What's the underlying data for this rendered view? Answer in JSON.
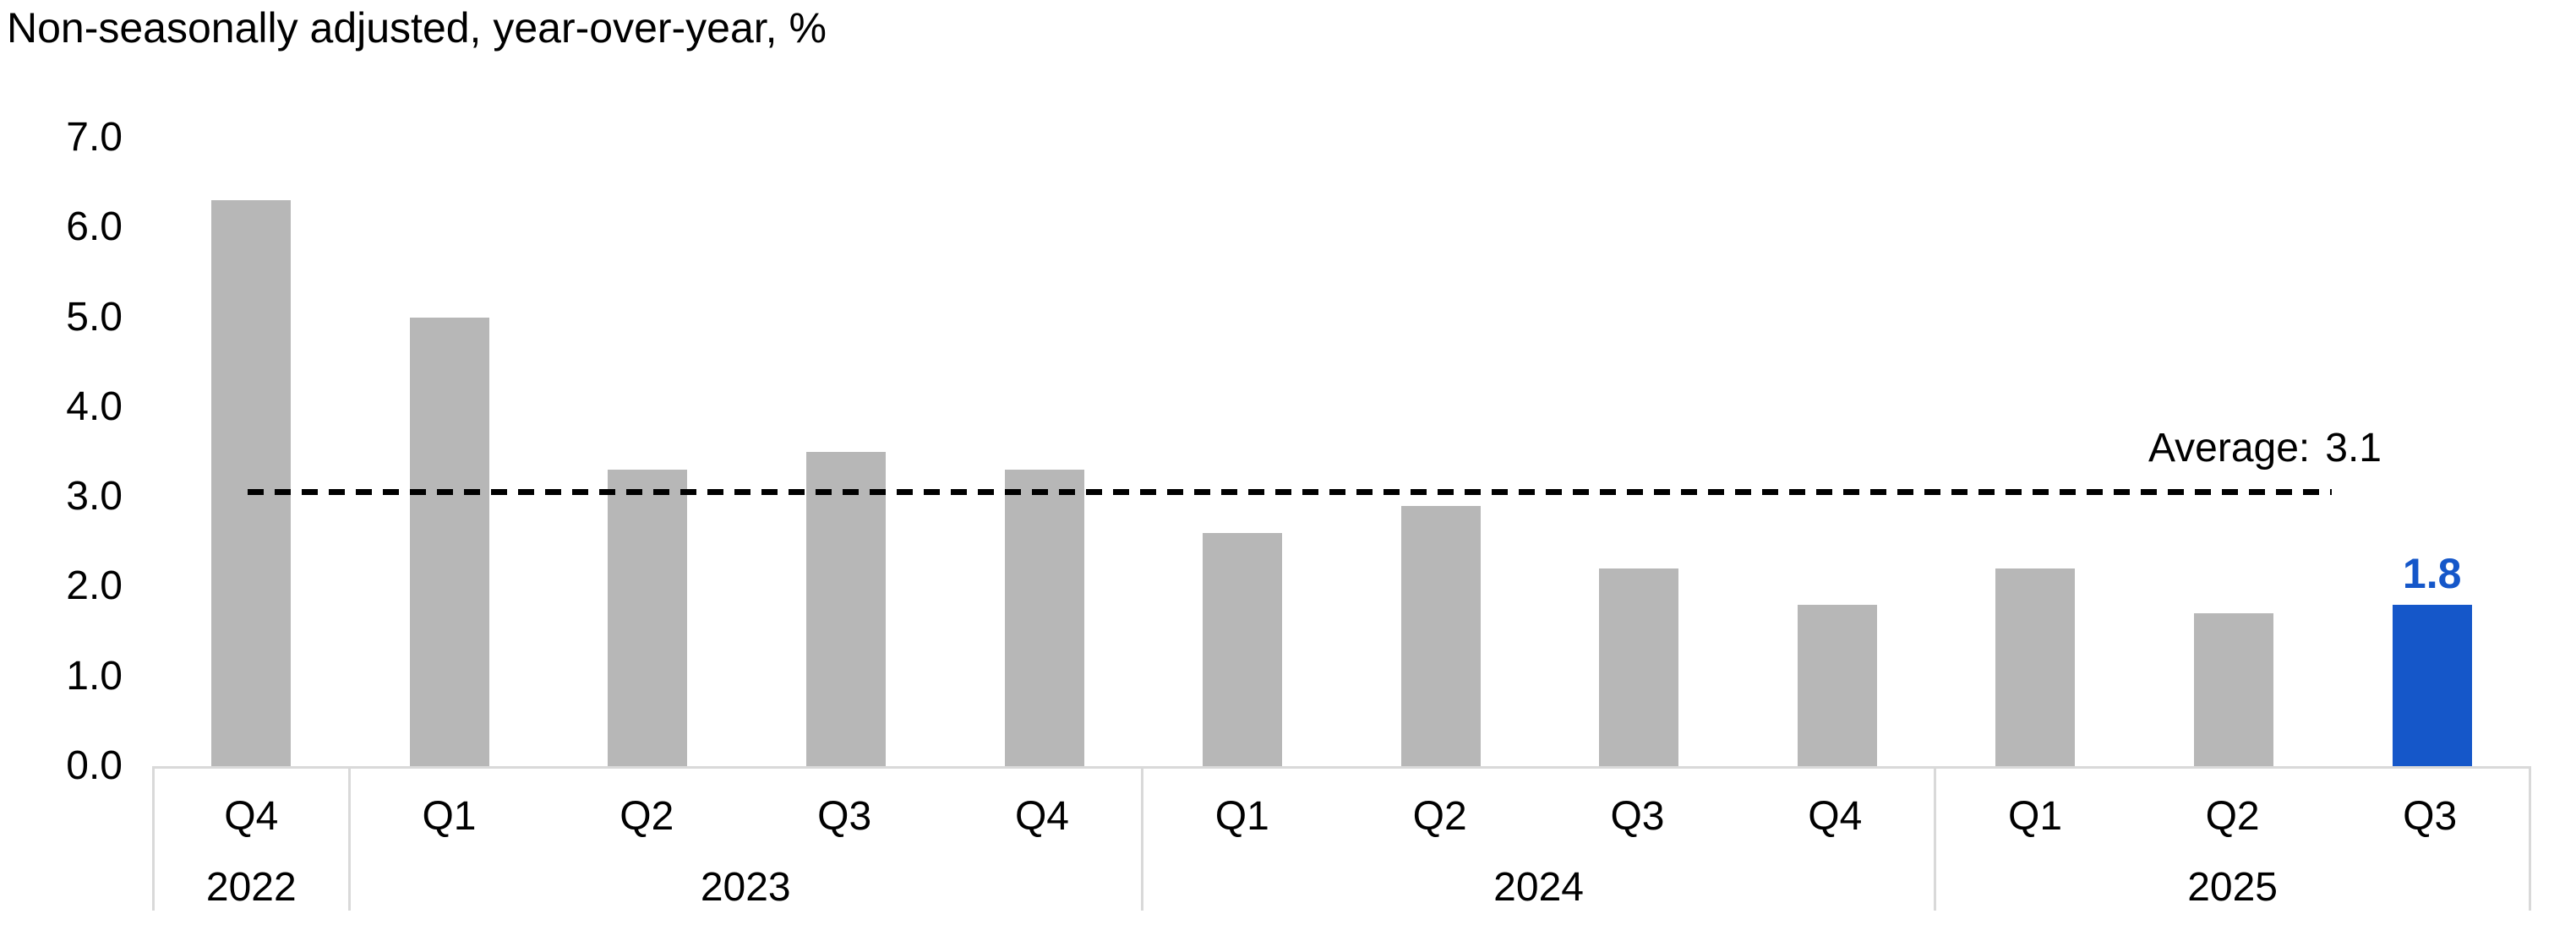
{
  "title": "Non-seasonally adjusted, year-over-year, %",
  "y_axis": {
    "ticks": [
      "7.0",
      "6.0",
      "5.0",
      "4.0",
      "3.0",
      "2.0",
      "1.0",
      "0.0"
    ],
    "max": 7.0,
    "min": 0.0
  },
  "average_line": {
    "label": "Average:",
    "value": "3.1"
  },
  "colors": {
    "bar": "#b7b7b7",
    "highlight": "#1557c9",
    "axis_line": "#d9d9d9",
    "dashed_line": "#000000",
    "text": "#000000"
  },
  "chart_data": {
    "type": "bar",
    "title": "Non-seasonally adjusted, year-over-year, %",
    "categories": [
      "Q4 2022",
      "Q1 2023",
      "Q2 2023",
      "Q3 2023",
      "Q4 2023",
      "Q1 2024",
      "Q2 2024",
      "Q3 2024",
      "Q4 2024",
      "Q1 2025",
      "Q2 2025",
      "Q3 2025"
    ],
    "values": [
      6.3,
      5.0,
      3.3,
      3.5,
      3.3,
      2.6,
      2.9,
      2.2,
      1.8,
      2.2,
      1.7,
      1.8
    ],
    "data_label": {
      "index": 11,
      "text": "1.8"
    },
    "highlight_index": 11,
    "average_label": "Average: 3.1",
    "xlabel": "",
    "ylabel": "",
    "ylim": [
      0,
      7
    ],
    "y_tick_step": 1.0,
    "grid": false,
    "legend": "none",
    "groups": [
      {
        "year": "2022",
        "quarters": [
          "Q4"
        ]
      },
      {
        "year": "2023",
        "quarters": [
          "Q1",
          "Q2",
          "Q3",
          "Q4"
        ]
      },
      {
        "year": "2024",
        "quarters": [
          "Q1",
          "Q2",
          "Q3",
          "Q4"
        ]
      },
      {
        "year": "2025",
        "quarters": [
          "Q1",
          "Q2",
          "Q3"
        ]
      }
    ]
  }
}
